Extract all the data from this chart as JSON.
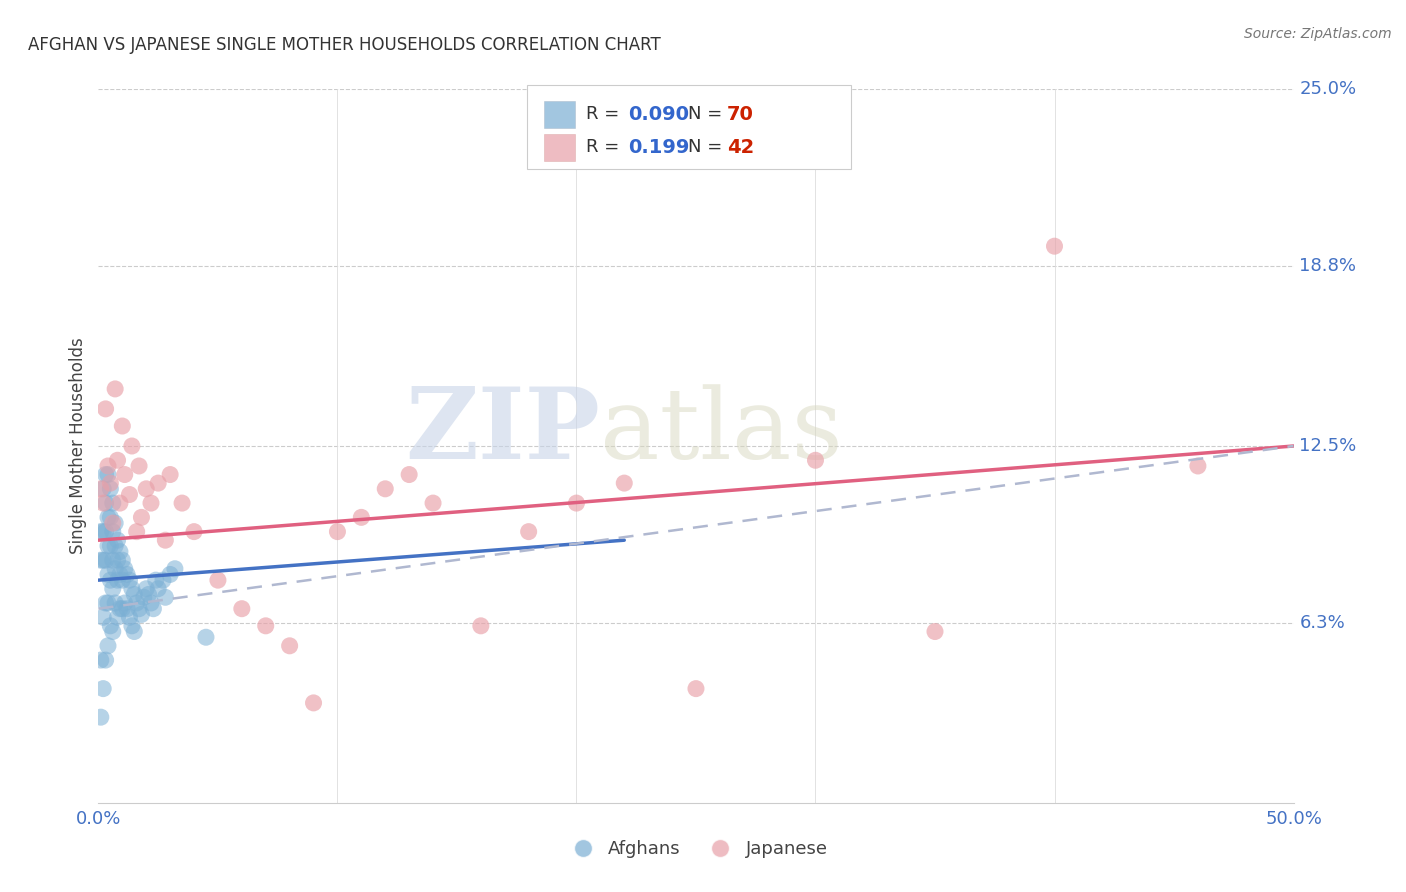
{
  "title": "AFGHAN VS JAPANESE SINGLE MOTHER HOUSEHOLDS CORRELATION CHART",
  "source": "Source: ZipAtlas.com",
  "ylabel": "Single Mother Households",
  "xlim": [
    0.0,
    0.5
  ],
  "ylim": [
    0.0,
    0.25
  ],
  "xtick_positions": [
    0.0,
    0.1,
    0.2,
    0.3,
    0.4,
    0.5
  ],
  "xticklabels_show": [
    "0.0%",
    "50.0%"
  ],
  "ytick_labels_right": [
    "6.3%",
    "12.5%",
    "18.8%",
    "25.0%"
  ],
  "ytick_vals_right": [
    0.063,
    0.125,
    0.188,
    0.25
  ],
  "blue_color": "#7bafd4",
  "pink_color": "#e8a0a8",
  "blue_line_color": "#4472c4",
  "pink_line_color": "#e06080",
  "dashed_line_color": "#b0b8d0",
  "legend_blue_R": "0.090",
  "legend_blue_N": "70",
  "legend_pink_R": "0.199",
  "legend_pink_N": "42",
  "watermark_zip": "ZIP",
  "watermark_atlas": "atlas",
  "blue_scatter_x": [
    0.001,
    0.001,
    0.001,
    0.001,
    0.002,
    0.002,
    0.002,
    0.002,
    0.002,
    0.003,
    0.003,
    0.003,
    0.003,
    0.003,
    0.003,
    0.004,
    0.004,
    0.004,
    0.004,
    0.004,
    0.004,
    0.005,
    0.005,
    0.005,
    0.005,
    0.005,
    0.006,
    0.006,
    0.006,
    0.006,
    0.006,
    0.007,
    0.007,
    0.007,
    0.007,
    0.008,
    0.008,
    0.008,
    0.008,
    0.009,
    0.009,
    0.009,
    0.01,
    0.01,
    0.01,
    0.011,
    0.011,
    0.012,
    0.012,
    0.013,
    0.013,
    0.014,
    0.014,
    0.015,
    0.015,
    0.016,
    0.017,
    0.018,
    0.019,
    0.02,
    0.021,
    0.022,
    0.023,
    0.024,
    0.025,
    0.027,
    0.028,
    0.03,
    0.032,
    0.045
  ],
  "blue_scatter_y": [
    0.095,
    0.085,
    0.05,
    0.03,
    0.11,
    0.095,
    0.085,
    0.065,
    0.04,
    0.115,
    0.105,
    0.095,
    0.085,
    0.07,
    0.05,
    0.115,
    0.1,
    0.09,
    0.08,
    0.07,
    0.055,
    0.11,
    0.1,
    0.09,
    0.078,
    0.062,
    0.105,
    0.095,
    0.085,
    0.075,
    0.06,
    0.098,
    0.09,
    0.082,
    0.07,
    0.092,
    0.085,
    0.078,
    0.065,
    0.088,
    0.08,
    0.068,
    0.085,
    0.078,
    0.068,
    0.082,
    0.07,
    0.08,
    0.068,
    0.078,
    0.065,
    0.075,
    0.062,
    0.073,
    0.06,
    0.07,
    0.068,
    0.066,
    0.072,
    0.075,
    0.073,
    0.07,
    0.068,
    0.078,
    0.075,
    0.078,
    0.072,
    0.08,
    0.082,
    0.058
  ],
  "pink_scatter_x": [
    0.001,
    0.002,
    0.003,
    0.004,
    0.005,
    0.006,
    0.007,
    0.008,
    0.009,
    0.01,
    0.011,
    0.013,
    0.014,
    0.016,
    0.017,
    0.018,
    0.02,
    0.022,
    0.025,
    0.028,
    0.03,
    0.035,
    0.04,
    0.05,
    0.06,
    0.07,
    0.08,
    0.09,
    0.1,
    0.11,
    0.12,
    0.13,
    0.14,
    0.16,
    0.18,
    0.2,
    0.22,
    0.25,
    0.3,
    0.35,
    0.4,
    0.46
  ],
  "pink_scatter_y": [
    0.11,
    0.105,
    0.138,
    0.118,
    0.112,
    0.098,
    0.145,
    0.12,
    0.105,
    0.132,
    0.115,
    0.108,
    0.125,
    0.095,
    0.118,
    0.1,
    0.11,
    0.105,
    0.112,
    0.092,
    0.115,
    0.105,
    0.095,
    0.078,
    0.068,
    0.062,
    0.055,
    0.035,
    0.095,
    0.1,
    0.11,
    0.115,
    0.105,
    0.062,
    0.095,
    0.105,
    0.112,
    0.04,
    0.12,
    0.06,
    0.195,
    0.118
  ],
  "blue_line_start_x": 0.0,
  "blue_line_end_x": 0.22,
  "blue_line_start_y": 0.078,
  "blue_line_end_y": 0.092,
  "pink_line_start_x": 0.0,
  "pink_line_end_x": 0.5,
  "pink_line_start_y": 0.092,
  "pink_line_end_y": 0.125,
  "dash_line_start_x": 0.0,
  "dash_line_end_x": 0.5,
  "dash_line_start_y": 0.068,
  "dash_line_end_y": 0.125
}
